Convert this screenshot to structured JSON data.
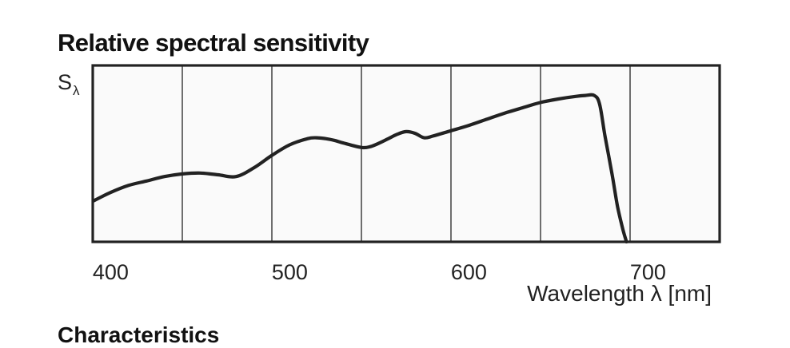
{
  "page": {
    "next_heading_fragment": "Characteristics"
  },
  "chart_data": {
    "type": "line",
    "title": "Relative spectral sensitivity",
    "ylabel_main": "S",
    "ylabel_sub": "λ",
    "xlabel": "Wavelength λ [nm]",
    "xlim": [
      390,
      740
    ],
    "ylim": [
      0,
      1
    ],
    "x_ticks": [
      400,
      500,
      600,
      700
    ],
    "x_tick_labels": [
      "400",
      "500",
      "600",
      "700"
    ],
    "vertical_gridlines": [
      440,
      490,
      540,
      590,
      640,
      690
    ],
    "grid": "vertical",
    "series": [
      {
        "x": [
          390,
          400,
          410,
          420,
          430,
          440,
          450,
          460,
          470,
          480,
          490,
          500,
          510,
          515,
          520,
          525,
          530,
          540,
          545,
          550,
          555,
          560,
          565,
          570,
          575,
          580,
          590,
          600,
          610,
          620,
          630,
          640,
          650,
          660,
          665,
          670,
          673,
          676,
          680,
          683,
          686,
          688
        ],
        "values": [
          0.23,
          0.28,
          0.32,
          0.345,
          0.37,
          0.385,
          0.39,
          0.38,
          0.37,
          0.42,
          0.49,
          0.55,
          0.585,
          0.59,
          0.585,
          0.575,
          0.56,
          0.535,
          0.54,
          0.56,
          0.585,
          0.61,
          0.625,
          0.615,
          0.59,
          0.6,
          0.63,
          0.66,
          0.695,
          0.73,
          0.76,
          0.79,
          0.81,
          0.825,
          0.83,
          0.83,
          0.78,
          0.6,
          0.38,
          0.2,
          0.07,
          0.0
        ],
        "color": "#222222"
      }
    ]
  }
}
